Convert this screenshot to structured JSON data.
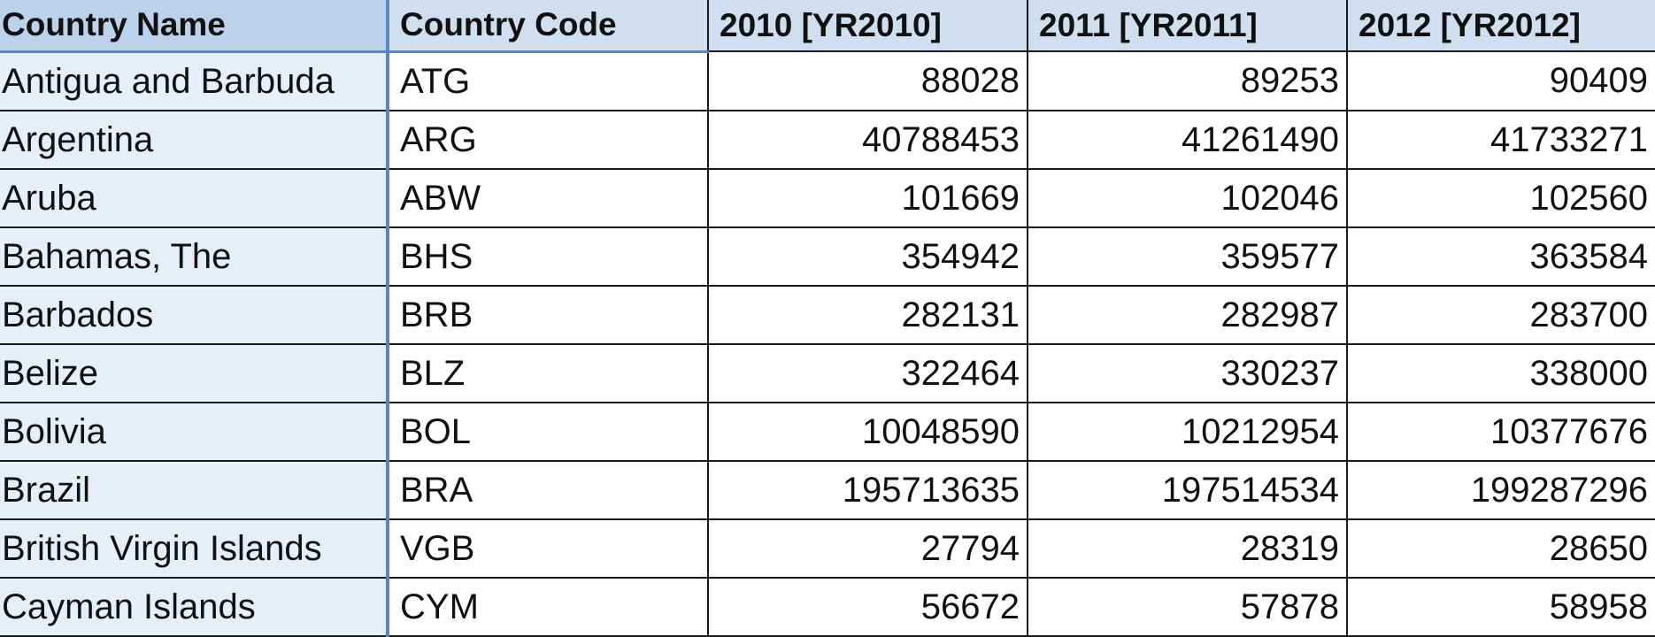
{
  "table": {
    "headers": {
      "name": "Country Name",
      "code": "Country Code",
      "y2010": "2010 [YR2010]",
      "y2011": "2011 [YR2011]",
      "y2012": "2012 [YR2012]"
    },
    "rows": [
      {
        "name": "Antigua and Barbuda",
        "code": "ATG",
        "y2010": "88028",
        "y2011": "89253",
        "y2012": "90409"
      },
      {
        "name": "Argentina",
        "code": "ARG",
        "y2010": "40788453",
        "y2011": "41261490",
        "y2012": "41733271"
      },
      {
        "name": "Aruba",
        "code": "ABW",
        "y2010": "101669",
        "y2011": "102046",
        "y2012": "102560"
      },
      {
        "name": "Bahamas, The",
        "code": "BHS",
        "y2010": "354942",
        "y2011": "359577",
        "y2012": "363584"
      },
      {
        "name": "Barbados",
        "code": "BRB",
        "y2010": "282131",
        "y2011": "282987",
        "y2012": "283700"
      },
      {
        "name": "Belize",
        "code": "BLZ",
        "y2010": "322464",
        "y2011": "330237",
        "y2012": "338000"
      },
      {
        "name": "Bolivia",
        "code": "BOL",
        "y2010": "10048590",
        "y2011": "10212954",
        "y2012": "10377676"
      },
      {
        "name": "Brazil",
        "code": "BRA",
        "y2010": "195713635",
        "y2011": "197514534",
        "y2012": "199287296"
      },
      {
        "name": "British Virgin Islands",
        "code": "VGB",
        "y2010": "27794",
        "y2011": "28319",
        "y2012": "28650"
      },
      {
        "name": "Cayman Islands",
        "code": "CYM",
        "y2010": "56672",
        "y2011": "57878",
        "y2012": "58958"
      }
    ]
  },
  "colors": {
    "header_background": "#cfdff0",
    "selected_column_background": "#e6eef8",
    "selection_border": "#5a86c5",
    "grid_line": "#1a1a1a"
  }
}
